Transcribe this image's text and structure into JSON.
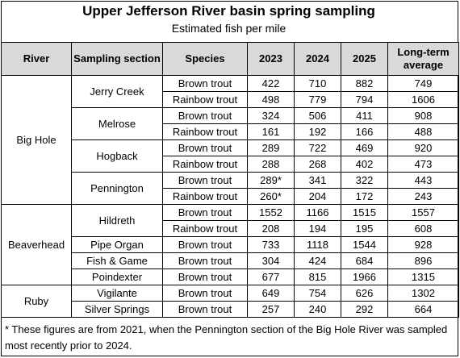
{
  "title": "Upper Jefferson River basin spring sampling",
  "subtitle": "Estimated fish per mile",
  "headers": {
    "river": "River",
    "section": "Sampling section",
    "species": "Species",
    "y2023": "2023",
    "y2024": "2024",
    "y2025": "2025",
    "avg": "Long-term average"
  },
  "rivers": [
    {
      "name": "Big Hole",
      "sections": [
        {
          "name": "Jerry Creek",
          "rows": [
            {
              "species": "Brown trout",
              "y2023": "422",
              "y2024": "710",
              "y2025": "882",
              "avg": "749"
            },
            {
              "species": "Rainbow trout",
              "y2023": "498",
              "y2024": "779",
              "y2025": "794",
              "avg": "1606"
            }
          ]
        },
        {
          "name": "Melrose",
          "rows": [
            {
              "species": "Brown trout",
              "y2023": "324",
              "y2024": "506",
              "y2025": "411",
              "avg": "908"
            },
            {
              "species": "Rainbow trout",
              "y2023": "161",
              "y2024": "192",
              "y2025": "166",
              "avg": "488"
            }
          ]
        },
        {
          "name": "Hogback",
          "rows": [
            {
              "species": "Brown trout",
              "y2023": "289",
              "y2024": "722",
              "y2025": "469",
              "avg": "920"
            },
            {
              "species": "Rainbow trout",
              "y2023": "288",
              "y2024": "268",
              "y2025": "402",
              "avg": "473"
            }
          ]
        },
        {
          "name": "Pennington",
          "rows": [
            {
              "species": "Brown trout",
              "y2023": "289*",
              "y2024": "341",
              "y2025": "322",
              "avg": "443"
            },
            {
              "species": "Rainbow trout",
              "y2023": "260*",
              "y2024": "204",
              "y2025": "172",
              "avg": "243"
            }
          ]
        }
      ]
    },
    {
      "name": "Beaverhead",
      "sections": [
        {
          "name": "Hildreth",
          "rows": [
            {
              "species": "Brown trout",
              "y2023": "1552",
              "y2024": "1166",
              "y2025": "1515",
              "avg": "1557"
            },
            {
              "species": "Rainbow trout",
              "y2023": "208",
              "y2024": "194",
              "y2025": "195",
              "avg": "608"
            }
          ]
        },
        {
          "name": "Pipe Organ",
          "rows": [
            {
              "species": "Brown trout",
              "y2023": "733",
              "y2024": "1118",
              "y2025": "1544",
              "avg": "928"
            }
          ]
        },
        {
          "name": "Fish & Game",
          "rows": [
            {
              "species": "Brown trout",
              "y2023": "304",
              "y2024": "424",
              "y2025": "684",
              "avg": "896"
            }
          ]
        },
        {
          "name": "Poindexter",
          "rows": [
            {
              "species": "Brown trout",
              "y2023": "677",
              "y2024": "815",
              "y2025": "1966",
              "avg": "1315"
            }
          ]
        }
      ]
    },
    {
      "name": "Ruby",
      "sections": [
        {
          "name": "Vigilante",
          "rows": [
            {
              "species": "Brown trout",
              "y2023": "649",
              "y2024": "754",
              "y2025": "626",
              "avg": "1302"
            }
          ]
        },
        {
          "name": "Silver Springs",
          "rows": [
            {
              "species": "Brown trout",
              "y2023": "257",
              "y2024": "240",
              "y2025": "292",
              "avg": "664"
            }
          ]
        }
      ]
    }
  ],
  "footnote": "* These figures are from 2021, when the Pennington section of the Big Hole River was sampled most recently prior to 2024."
}
